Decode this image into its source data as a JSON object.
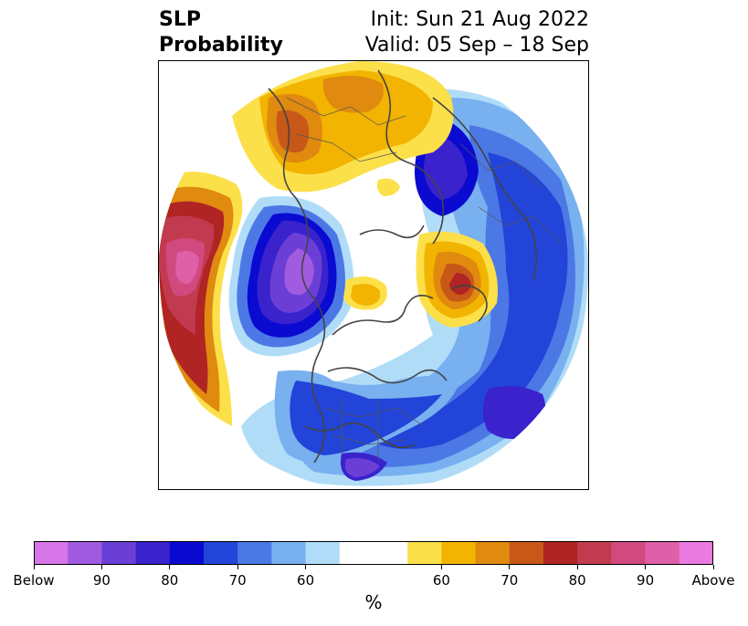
{
  "title": {
    "left_line1": "SLP",
    "left_line2": "Probability",
    "right_line1": "Init: Sun 21 Aug 2022",
    "right_line2": "Valid: 05 Sep – 18 Sep"
  },
  "colorbar": {
    "units": "%",
    "colors_below": [
      "#d676e8",
      "#a05be0",
      "#6b3fd6",
      "#3a22cc",
      "#0a0ad0",
      "#2244d8",
      "#4c78e6",
      "#78b0f0",
      "#b0dcf8"
    ],
    "neutral_color": "#ffffff",
    "colors_above": [
      "#fce04a",
      "#f2b400",
      "#e08a10",
      "#c85818",
      "#b02424",
      "#c23a50",
      "#d04a80",
      "#de60a8",
      "#ea7ae0"
    ],
    "tick_labels": [
      "Below",
      "90",
      "80",
      "70",
      "60",
      "60",
      "70",
      "80",
      "90",
      "Above"
    ]
  },
  "map": {
    "projection": "north-polar-stereographic",
    "anomalies": [
      {
        "region": "western-europe",
        "sign": "above",
        "strength": 2
      },
      {
        "region": "north-pacific",
        "sign": "above",
        "strength": 3
      },
      {
        "region": "central-asia",
        "sign": "above",
        "strength": 2
      },
      {
        "region": "barents-sea",
        "sign": "above",
        "strength": 1
      },
      {
        "region": "siberia",
        "sign": "below",
        "strength": 2
      },
      {
        "region": "alaska-bering",
        "sign": "below",
        "strength": 3
      },
      {
        "region": "north-atlantic",
        "sign": "below",
        "strength": 2
      },
      {
        "region": "canada-usa",
        "sign": "below",
        "strength": 1
      }
    ]
  }
}
